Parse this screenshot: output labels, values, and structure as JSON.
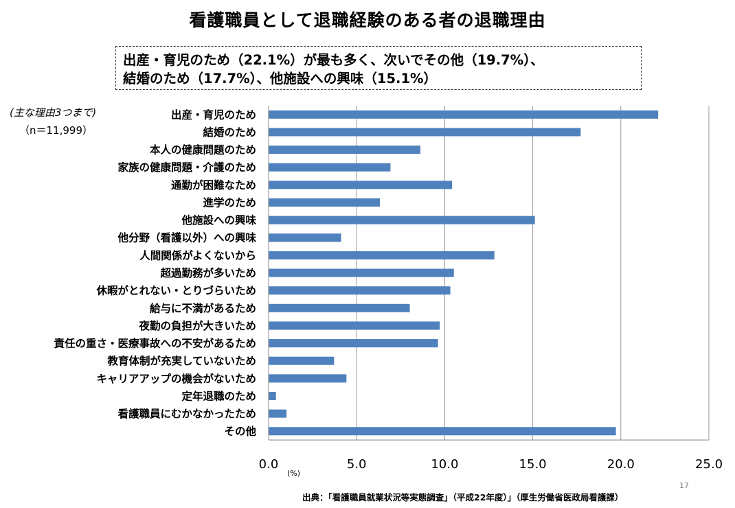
{
  "title": "看護職員として退職経験のある者の退職理由",
  "summary": {
    "line1": "出産・育児のため（22.1%）が最も多く、次いでその他（19.7%）、",
    "line2": "結婚のため（17.7%）、他施設への興味（15.1%）"
  },
  "note": {
    "scope": "(主な理由3つまで)",
    "sample": "（n＝11,999）"
  },
  "unit_label": "(%)",
  "page_number": "17",
  "source": "出典：「看護職員就業状況等実態調査」（平成22年度）」（厚生労働省医政局看護課）",
  "chart_data": {
    "type": "bar",
    "orientation": "horizontal",
    "categories": [
      "出産・育児のため",
      "結婚のため",
      "本人の健康問題のため",
      "家族の健康問題・介護のため",
      "通勤が困難なため",
      "進学のため",
      "他施設への興味",
      "他分野（看護以外）への興味",
      "人間関係がよくないから",
      "超過勤務が多いため",
      "休暇がとれない・とりづらいため",
      "給与に不満があるため",
      "夜勤の負担が大きいため",
      "責任の重さ・医療事故への不安があるため",
      "教育体制が充実していないため",
      "キャリアアップの機会がないため",
      "定年退職のため",
      "看護職員にむかなかったため",
      "その他"
    ],
    "values": [
      22.1,
      17.7,
      8.6,
      6.9,
      10.4,
      6.3,
      15.1,
      4.1,
      12.8,
      10.5,
      10.3,
      8.0,
      9.7,
      9.6,
      3.7,
      4.4,
      0.4,
      1.0,
      19.7
    ],
    "xlim": [
      0,
      25
    ],
    "xticks": [
      "0.0",
      "5.0",
      "10.0",
      "15.0",
      "20.0",
      "25.0"
    ],
    "tick_values": [
      0,
      5,
      10,
      15,
      20,
      25
    ],
    "grid": "vertical",
    "bar_color": "#4f81bd",
    "grid_color": "#999999"
  }
}
